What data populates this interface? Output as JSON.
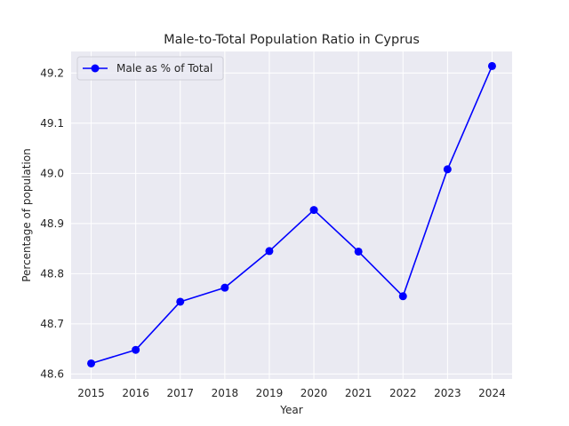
{
  "chart_data": {
    "type": "line",
    "title": "Male-to-Total Population Ratio in Cyprus",
    "xlabel": "Year",
    "ylabel": "Percentage of population",
    "x": [
      2015,
      2016,
      2017,
      2018,
      2019,
      2020,
      2021,
      2022,
      2023,
      2024
    ],
    "series": [
      {
        "name": "Male as % of Total",
        "color": "#0000ff",
        "marker": "circle",
        "values": [
          48.621,
          48.648,
          48.744,
          48.772,
          48.845,
          48.927,
          48.844,
          48.755,
          49.008,
          49.214
        ]
      }
    ],
    "xlim": [
      2014.55,
      2024.45
    ],
    "ylim": [
      48.59,
      49.243
    ],
    "yticks": [
      48.6,
      48.7,
      48.8,
      48.9,
      49.0,
      49.1,
      49.2
    ],
    "ytick_labels": [
      "48.6",
      "48.7",
      "48.8",
      "48.9",
      "49.0",
      "49.1",
      "49.2"
    ],
    "xticks": [
      2015,
      2016,
      2017,
      2018,
      2019,
      2020,
      2021,
      2022,
      2023,
      2024
    ],
    "xtick_labels": [
      "2015",
      "2016",
      "2017",
      "2018",
      "2019",
      "2020",
      "2021",
      "2022",
      "2023",
      "2024"
    ],
    "grid": true,
    "legend_position": "top-left",
    "background_color": "#eaeaf2",
    "grid_color": "#ffffff"
  }
}
